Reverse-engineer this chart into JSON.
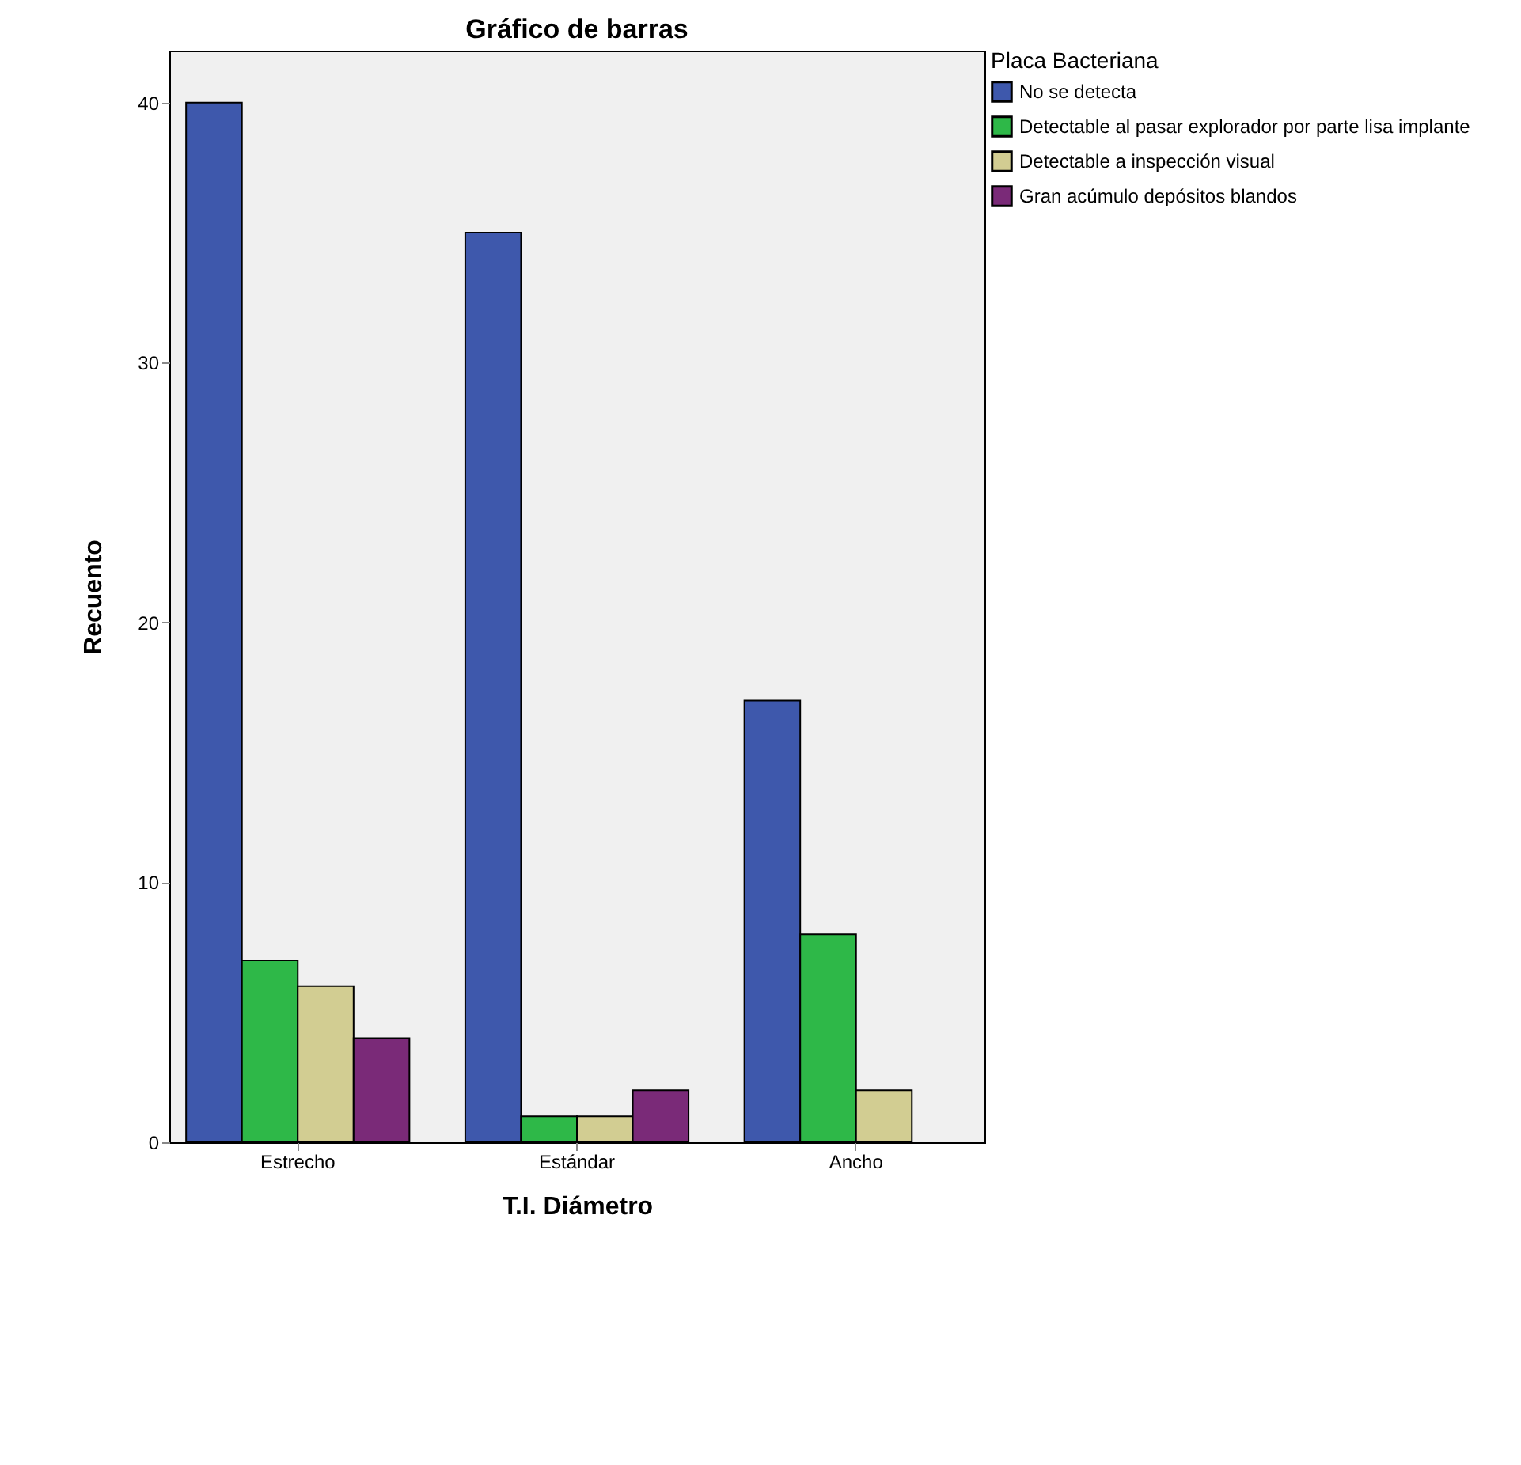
{
  "chart_data": {
    "type": "bar",
    "title": "Gráfico de barras",
    "xlabel": "T.I. Diámetro",
    "ylabel": "Recuento",
    "legend_title": "Placa Bacteriana",
    "categories": [
      "Estrecho",
      "Estándar",
      "Ancho"
    ],
    "series": [
      {
        "name": "No se detecta",
        "color": "#3e58ac",
        "values": [
          40,
          35,
          17
        ]
      },
      {
        "name": "Detectable al pasar explorador por parte lisa implante",
        "color": "#2eb848",
        "values": [
          7,
          1,
          8
        ]
      },
      {
        "name": "Detectable a inspección visual",
        "color": "#d2cd92",
        "values": [
          6,
          1,
          2
        ]
      },
      {
        "name": "Gran acúmulo depósitos blandos",
        "color": "#7a2a78",
        "values": [
          4,
          2,
          null
        ]
      }
    ],
    "ylim": [
      0,
      42
    ],
    "yticks": [
      0,
      10,
      20,
      30,
      40
    ],
    "grid": false,
    "legend": "top right"
  }
}
